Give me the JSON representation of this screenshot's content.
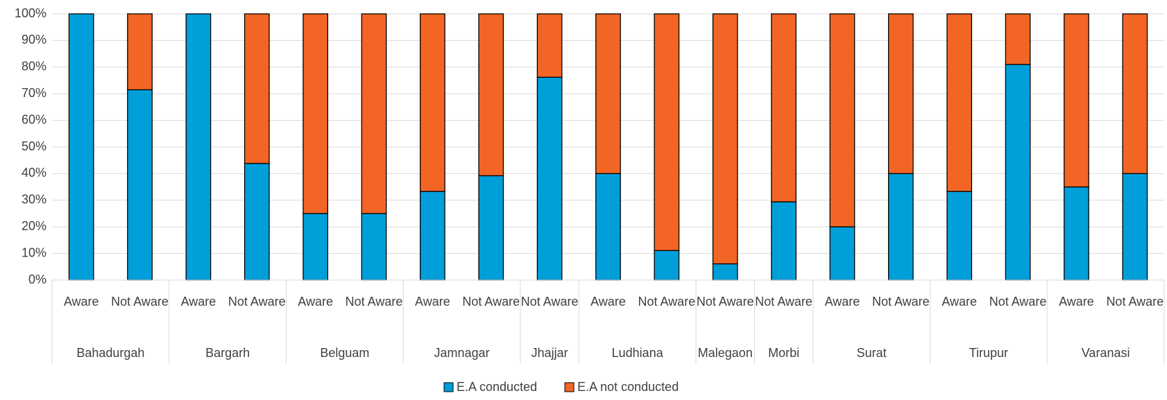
{
  "chart_data": {
    "type": "stacked_bar_100",
    "groups": [
      {
        "name": "Bahadurgah",
        "categories": [
          "Aware",
          "Not Aware"
        ]
      },
      {
        "name": "Bargarh",
        "categories": [
          "Aware",
          "Not Aware"
        ]
      },
      {
        "name": "Belguam",
        "categories": [
          "Aware",
          "Not Aware"
        ]
      },
      {
        "name": "Jamnagar",
        "categories": [
          "Aware",
          "Not Aware"
        ]
      },
      {
        "name": "Jhajjar",
        "categories": [
          "Not Aware"
        ]
      },
      {
        "name": "Ludhiana",
        "categories": [
          "Aware",
          "Not Aware"
        ]
      },
      {
        "name": "Malegaon",
        "categories": [
          "Not Aware"
        ]
      },
      {
        "name": "Morbi",
        "categories": [
          "Not Aware"
        ]
      },
      {
        "name": "Surat",
        "categories": [
          "Aware",
          "Not Aware"
        ]
      },
      {
        "name": "Tirupur",
        "categories": [
          "Aware",
          "Not Aware"
        ]
      },
      {
        "name": "Varanasi",
        "categories": [
          "Aware",
          "Not Aware"
        ]
      }
    ],
    "series": [
      {
        "name": "E.A conducted",
        "color": "#009fda",
        "values": [
          100,
          71.5,
          100,
          43.8,
          25,
          25,
          33.3,
          39.2,
          76.2,
          40,
          11.1,
          6.1,
          29.4,
          20,
          40,
          33.3,
          81,
          35,
          40
        ]
      },
      {
        "name": "E.A not conducted",
        "color": "#f26524",
        "values": [
          0,
          28.5,
          0,
          56.2,
          75,
          75,
          66.7,
          60.8,
          23.8,
          60,
          88.9,
          93.9,
          70.6,
          80,
          60,
          66.7,
          19,
          65,
          60
        ]
      }
    ],
    "ylim": [
      0,
      100
    ],
    "yticks": [
      {
        "value": 0,
        "label": "0%"
      },
      {
        "value": 10,
        "label": "10%"
      },
      {
        "value": 20,
        "label": "20%"
      },
      {
        "value": 30,
        "label": "30%"
      },
      {
        "value": 40,
        "label": "40%"
      },
      {
        "value": 50,
        "label": "50%"
      },
      {
        "value": 60,
        "label": "60%"
      },
      {
        "value": 70,
        "label": "70%"
      },
      {
        "value": 80,
        "label": "80%"
      },
      {
        "value": 90,
        "label": "90%"
      },
      {
        "value": 100,
        "label": "100%"
      }
    ],
    "grid": true,
    "legend": "bottom"
  }
}
